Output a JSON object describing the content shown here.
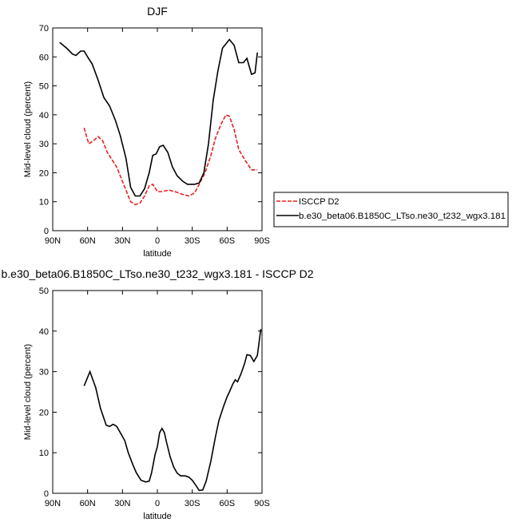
{
  "chart_data": [
    {
      "type": "line",
      "title": "DJF",
      "xlabel": "latitude",
      "ylabel": "Mid-level cloud (percent)",
      "xlim": [
        90,
        -90
      ],
      "xticks": [
        {
          "value": 90,
          "label": "90N"
        },
        {
          "value": 60,
          "label": "60N"
        },
        {
          "value": 30,
          "label": "30N"
        },
        0,
        {
          "value": -30,
          "label": "30S"
        },
        {
          "value": -60,
          "label": "60S"
        },
        {
          "value": -90,
          "label": "90S"
        }
      ],
      "ylim": [
        0,
        70
      ],
      "yticks": [
        0,
        10,
        20,
        30,
        40,
        50,
        60,
        70
      ],
      "legend": "right",
      "series": [
        {
          "name": "ISCCP D2",
          "color": "#e8201c",
          "linestyle": "dashed",
          "x": [
            63,
            59,
            55,
            51,
            47,
            43,
            39,
            35,
            31,
            27,
            23,
            19,
            15,
            11,
            7,
            4,
            0,
            -4,
            -10,
            -15,
            -22,
            -27,
            -32,
            -36,
            -41,
            -46,
            -50,
            -55,
            -59,
            -62,
            -66,
            -70,
            -76,
            -81,
            -86
          ],
          "values": [
            35.5,
            30,
            31,
            32.5,
            31,
            27,
            24.5,
            22,
            18,
            14,
            10,
            9,
            9.5,
            12,
            15.5,
            16,
            13.5,
            13.5,
            14,
            13.5,
            12.5,
            12,
            13,
            16,
            20,
            26,
            32,
            37,
            40,
            39.5,
            35,
            28,
            24,
            21,
            21
          ]
        },
        {
          "name": "b.e30_beta06.B1850C_LTso.ne30_t232_wgx3.181",
          "color": "#000000",
          "linestyle": "solid",
          "x": [
            84,
            78,
            73,
            70,
            66,
            63,
            60,
            56,
            51,
            46,
            41,
            36,
            32,
            27,
            23,
            19,
            15,
            11,
            7,
            4,
            1,
            -2,
            -5,
            -9,
            -13,
            -17,
            -22,
            -26,
            -32,
            -36,
            -40,
            -44,
            -48,
            -52,
            -56,
            -60,
            -62,
            -66,
            -70,
            -74,
            -77,
            -81,
            -84,
            -86
          ],
          "values": [
            65,
            63,
            61,
            60.5,
            62,
            62,
            60,
            57.5,
            52,
            46,
            43,
            38,
            33,
            25,
            15,
            12,
            12,
            14.5,
            20,
            26,
            26.5,
            29,
            29.5,
            27,
            22,
            19,
            17,
            16,
            16,
            16.5,
            20,
            30,
            45,
            55,
            63,
            65,
            66,
            64,
            58,
            58,
            59.5,
            54,
            54.5,
            61.5
          ]
        }
      ]
    },
    {
      "type": "line",
      "title": "b.e30_beta06.B1850C_LTso.ne30_t232_wgx3.181 - ISCCP D2",
      "xlabel": "latitude",
      "ylabel": "Mid-level cloud (percent)",
      "xlim": [
        90,
        -90
      ],
      "xticks": [
        {
          "value": 90,
          "label": "90N"
        },
        {
          "value": 60,
          "label": "60N"
        },
        {
          "value": 30,
          "label": "30N"
        },
        0,
        {
          "value": -30,
          "label": "30S"
        },
        {
          "value": -60,
          "label": "60S"
        },
        {
          "value": -90,
          "label": "90S"
        }
      ],
      "ylim": [
        0,
        50
      ],
      "yticks": [
        0,
        10,
        20,
        30,
        40,
        50
      ],
      "series": [
        {
          "color": "#000000",
          "linestyle": "solid",
          "x": [
            63,
            58,
            53,
            49,
            44,
            41,
            38,
            35,
            31,
            28,
            25,
            21,
            18,
            14,
            10,
            7,
            5,
            2,
            0,
            -2,
            -4,
            -6,
            -8,
            -11,
            -14,
            -17,
            -20,
            -24,
            -27,
            -30,
            -33,
            -36,
            -39,
            -42,
            -46,
            -50,
            -53,
            -57,
            -60,
            -62,
            -65,
            -67,
            -69,
            -72,
            -75,
            -77,
            -80,
            -83,
            -86,
            -89
          ],
          "values": [
            26.5,
            30,
            26,
            21,
            16.8,
            16.5,
            17,
            16.5,
            14.5,
            13,
            10,
            7,
            5,
            3.2,
            2.8,
            3,
            5,
            9.5,
            11.5,
            15,
            16,
            15,
            12.5,
            9,
            6.5,
            5,
            4.3,
            4.3,
            4,
            3.2,
            2,
            0.7,
            0.8,
            3,
            8,
            14,
            18,
            21.5,
            23.8,
            25,
            27,
            28,
            27.5,
            29.5,
            32,
            34.2,
            34,
            32.5,
            34,
            40.5
          ]
        }
      ]
    }
  ]
}
